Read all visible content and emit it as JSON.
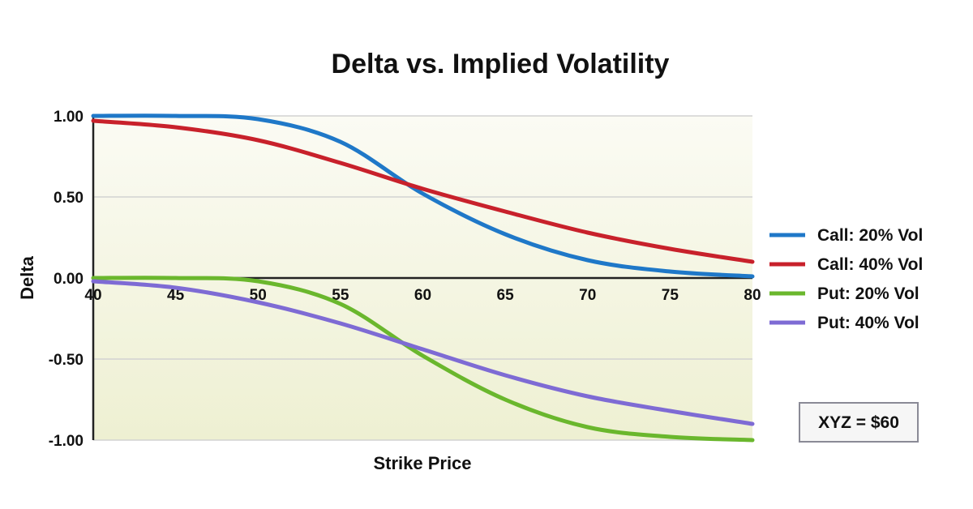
{
  "chart_data": {
    "type": "line",
    "title": "Delta vs. Implied Volatility",
    "xlabel": "Strike Price",
    "ylabel": "Delta",
    "x": [
      40,
      45,
      50,
      55,
      60,
      65,
      70,
      75,
      80
    ],
    "xlim": [
      40,
      80
    ],
    "ylim": [
      -1.0,
      1.0
    ],
    "x_ticks": [
      "40",
      "45",
      "50",
      "55",
      "60",
      "65",
      "70",
      "75",
      "80"
    ],
    "y_ticks": [
      {
        "value": 1.0,
        "label": "1.00"
      },
      {
        "value": 0.5,
        "label": "0.50"
      },
      {
        "value": 0.0,
        "label": "0.00"
      },
      {
        "value": -0.5,
        "label": "-0.50"
      },
      {
        "value": -1.0,
        "label": "-1.00"
      }
    ],
    "grid": true,
    "legend_position": "right",
    "series": [
      {
        "name": "Call: 20% Vol",
        "color": "#1f78c8",
        "values": [
          1.0,
          1.0,
          0.98,
          0.84,
          0.52,
          0.27,
          0.11,
          0.04,
          0.01
        ]
      },
      {
        "name": "Call: 40% Vol",
        "color": "#c8212b",
        "values": [
          0.97,
          0.93,
          0.85,
          0.71,
          0.55,
          0.41,
          0.28,
          0.18,
          0.1
        ]
      },
      {
        "name": "Put: 20% Vol",
        "color": "#6ab72d",
        "values": [
          0.0,
          0.0,
          -0.02,
          -0.16,
          -0.48,
          -0.75,
          -0.92,
          -0.98,
          -1.0
        ]
      },
      {
        "name": "Put: 40% Vol",
        "color": "#7e6bd4",
        "values": [
          -0.02,
          -0.06,
          -0.15,
          -0.28,
          -0.44,
          -0.6,
          -0.73,
          -0.82,
          -0.9
        ]
      }
    ],
    "annotation": "XYZ = $60"
  }
}
